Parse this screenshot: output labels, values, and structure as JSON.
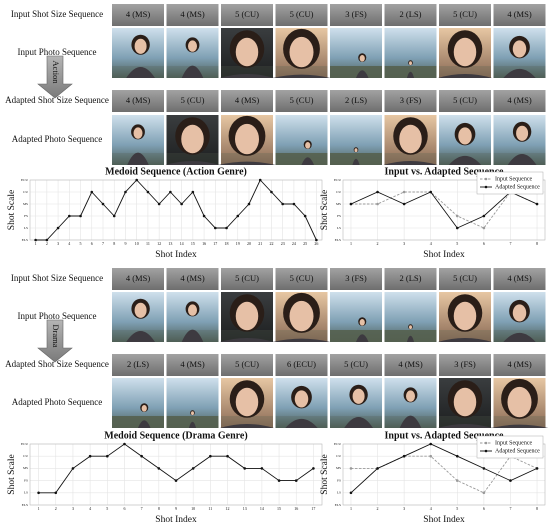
{
  "sections": [
    {
      "genre": "Action",
      "input_label": "Input Shot Size Sequence",
      "photo_label": "Input Photo Sequence",
      "adapted_label": "Adapted Shot Size Sequence",
      "adapted_photo_label": "Adapted Photo Sequence",
      "input_shots": [
        "4 (MS)",
        "4 (MS)",
        "5 (CU)",
        "5 (CU)",
        "3 (FS)",
        "2 (LS)",
        "5 (CU)",
        "4 (MS)"
      ],
      "adapted_shots": [
        "4 (MS)",
        "5 (CU)",
        "4 (MS)",
        "5 (CU)",
        "2 (LS)",
        "3 (FS)",
        "5 (CU)",
        "4 (MS)"
      ]
    },
    {
      "genre": "Drama",
      "input_label": "Input Shot Size Sequence",
      "photo_label": "Input Photo Sequence",
      "adapted_label": "Adapted Shot Size Sequence",
      "adapted_photo_label": "Adapted Photo Sequence",
      "input_shots": [
        "4 (MS)",
        "4 (MS)",
        "5 (CU)",
        "5 (CU)",
        "3 (FS)",
        "2 (LS)",
        "5 (CU)",
        "4 (MS)"
      ],
      "adapted_shots": [
        "2 (LS)",
        "4 (MS)",
        "5 (CU)",
        "6 (ECU)",
        "5 (CU)",
        "4 (MS)",
        "3 (FS)",
        "4 (MS)"
      ]
    }
  ],
  "chart_data": [
    {
      "type": "line",
      "title": "Medoid Sequence (Action Genre)",
      "xlabel": "Shot Index",
      "ylabel": "Shot Scale",
      "grid": true,
      "x": [
        1,
        2,
        3,
        4,
        5,
        6,
        7,
        8,
        9,
        10,
        11,
        12,
        13,
        14,
        15,
        16,
        17,
        18,
        19,
        20,
        21,
        22,
        23,
        24,
        25,
        26
      ],
      "xlim": [
        0.5,
        26.5
      ],
      "xticks": [
        1,
        2,
        3,
        4,
        5,
        6,
        7,
        8,
        9,
        10,
        11,
        12,
        13,
        14,
        15,
        16,
        17,
        18,
        19,
        20,
        21,
        22,
        23,
        24,
        25,
        26
      ],
      "ylim": [
        1,
        6
      ],
      "yticks": [
        {
          "value": 1,
          "label": "ELS"
        },
        {
          "value": 2,
          "label": "LS"
        },
        {
          "value": 3,
          "label": "FS"
        },
        {
          "value": 4,
          "label": "MS"
        },
        {
          "value": 5,
          "label": "CU"
        },
        {
          "value": 6,
          "label": "ECU"
        }
      ],
      "series": [
        {
          "color": "#111111",
          "style": "solid",
          "values": [
            1,
            1,
            2,
            3,
            3,
            5,
            4,
            3,
            5,
            6,
            5,
            4,
            5,
            4,
            5,
            3,
            2,
            2,
            3,
            4,
            6,
            5,
            4,
            4,
            3,
            1
          ]
        }
      ]
    },
    {
      "type": "line",
      "title": "Input vs. Adapted Sequence",
      "xlabel": "Shot Index",
      "ylabel": "Shot Scale",
      "grid": true,
      "legend": "upper right",
      "x": [
        1,
        2,
        3,
        4,
        5,
        6,
        7,
        8
      ],
      "xlim": [
        0.7,
        8.3
      ],
      "xticks": [
        1,
        2,
        3,
        4,
        5,
        6,
        7,
        8
      ],
      "ylim": [
        1,
        6
      ],
      "yticks": [
        {
          "value": 1,
          "label": "ELS"
        },
        {
          "value": 2,
          "label": "LS"
        },
        {
          "value": 3,
          "label": "FS"
        },
        {
          "value": 4,
          "label": "MS"
        },
        {
          "value": 5,
          "label": "CU"
        },
        {
          "value": 6,
          "label": "ECU"
        }
      ],
      "series": [
        {
          "name": "Input Sequence",
          "color": "#999999",
          "style": "dashed",
          "values": [
            4,
            4,
            5,
            5,
            3,
            2,
            5,
            4
          ]
        },
        {
          "name": "Adapted Sequence",
          "color": "#111111",
          "style": "solid",
          "values": [
            4,
            5,
            4,
            5,
            2,
            3,
            5,
            4
          ]
        }
      ]
    },
    {
      "type": "line",
      "title": "Medoid Sequence (Drama Genre)",
      "xlabel": "Shot Index",
      "ylabel": "Shot Scale",
      "grid": true,
      "x": [
        1,
        2,
        3,
        4,
        5,
        6,
        7,
        8,
        9,
        10,
        11,
        12,
        13,
        14,
        15,
        16,
        17
      ],
      "xlim": [
        0.5,
        17.5
      ],
      "xticks": [
        1,
        2,
        3,
        4,
        5,
        6,
        7,
        8,
        9,
        10,
        11,
        12,
        13,
        14,
        15,
        16,
        17
      ],
      "ylim": [
        1,
        6
      ],
      "yticks": [
        {
          "value": 1,
          "label": "ELS"
        },
        {
          "value": 2,
          "label": "LS"
        },
        {
          "value": 3,
          "label": "FS"
        },
        {
          "value": 4,
          "label": "MS"
        },
        {
          "value": 5,
          "label": "CU"
        },
        {
          "value": 6,
          "label": "ECU"
        }
      ],
      "series": [
        {
          "color": "#111111",
          "style": "solid",
          "values": [
            2,
            2,
            4,
            5,
            5,
            6,
            5,
            4,
            3,
            4,
            5,
            5,
            4,
            4,
            3,
            3,
            4
          ]
        }
      ]
    },
    {
      "type": "line",
      "title": "Input vs. Adapted Sequence",
      "xlabel": "Shot Index",
      "ylabel": "Shot Scale",
      "grid": true,
      "legend": "upper right",
      "x": [
        1,
        2,
        3,
        4,
        5,
        6,
        7,
        8
      ],
      "xlim": [
        0.7,
        8.3
      ],
      "xticks": [
        1,
        2,
        3,
        4,
        5,
        6,
        7,
        8
      ],
      "ylim": [
        1,
        6
      ],
      "yticks": [
        {
          "value": 1,
          "label": "ELS"
        },
        {
          "value": 2,
          "label": "LS"
        },
        {
          "value": 3,
          "label": "FS"
        },
        {
          "value": 4,
          "label": "MS"
        },
        {
          "value": 5,
          "label": "CU"
        },
        {
          "value": 6,
          "label": "ECU"
        }
      ],
      "series": [
        {
          "name": "Input Sequence",
          "color": "#999999",
          "style": "dashed",
          "values": [
            4,
            4,
            5,
            5,
            3,
            2,
            5,
            4
          ]
        },
        {
          "name": "Adapted Sequence",
          "color": "#111111",
          "style": "solid",
          "values": [
            2,
            4,
            5,
            6,
            5,
            4,
            3,
            4
          ]
        }
      ]
    }
  ]
}
